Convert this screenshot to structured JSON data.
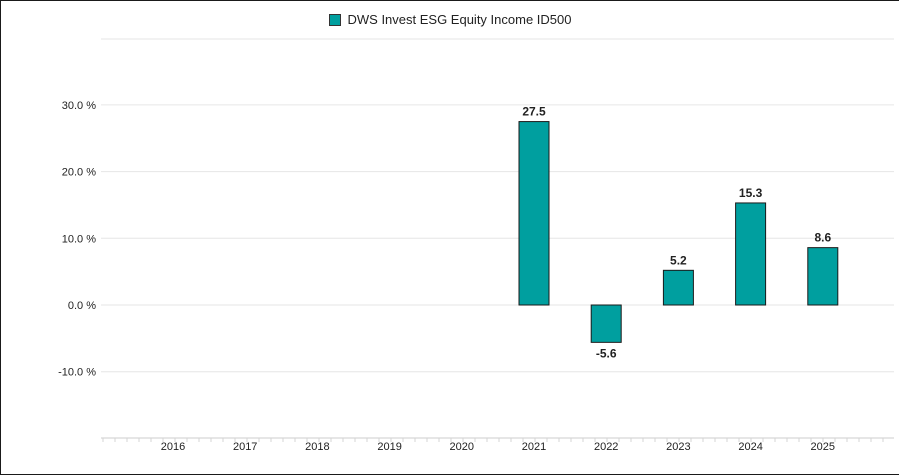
{
  "legend": {
    "series_name": "DWS Invest ESG Equity Income ID500"
  },
  "colors": {
    "bar_fill": "#009f9f",
    "bar_stroke": "#1a1a1a",
    "gridline": "#e6e6e6"
  },
  "chart_data": {
    "type": "bar",
    "categories": [
      "2016",
      "2017",
      "2018",
      "2019",
      "2020",
      "2021",
      "2022",
      "2023",
      "2024",
      "2025"
    ],
    "series": [
      {
        "name": "DWS Invest ESG Equity Income ID500",
        "values": [
          null,
          null,
          null,
          null,
          null,
          27.5,
          -5.6,
          5.2,
          15.3,
          8.6
        ],
        "data_labels": [
          "",
          "",
          "",
          "",
          "",
          "27.5",
          "-5.6",
          "5.2",
          "15.3",
          "8.6"
        ]
      }
    ],
    "y_ticks": [
      -10,
      0,
      10,
      20,
      30
    ],
    "y_tick_labels": [
      "-10.0 %",
      "0.0 %",
      "10.0 %",
      "20.0 %",
      "30.0 %"
    ],
    "ylim": [
      -20,
      40
    ],
    "grid": true,
    "legend_position": "top-center",
    "title": "",
    "xlabel": "",
    "ylabel": ""
  }
}
